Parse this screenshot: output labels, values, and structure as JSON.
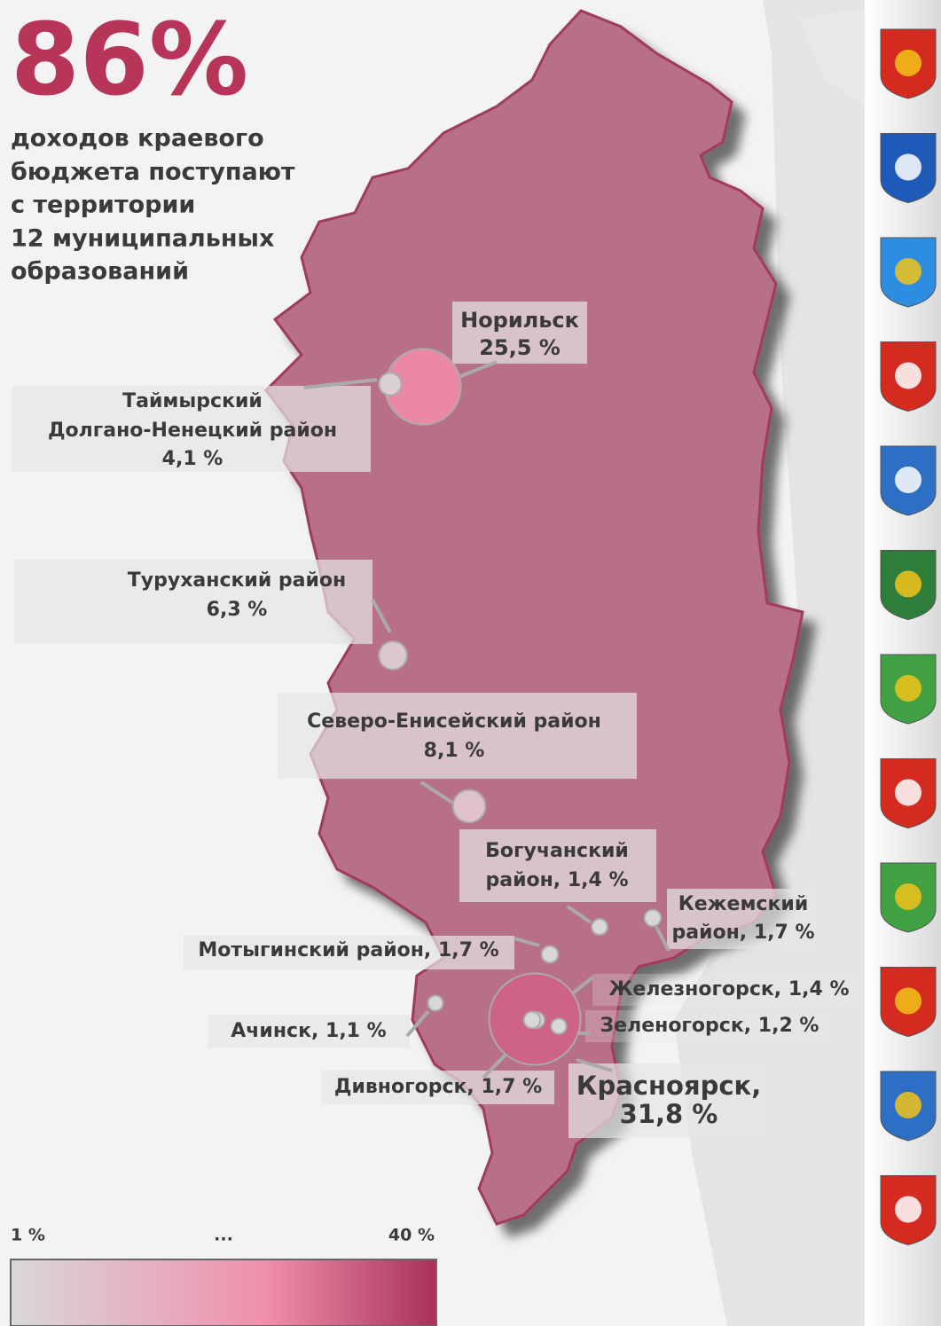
{
  "headline": "86%",
  "description": [
    "доходов краевого",
    "бюджета поступают",
    "с территории",
    "12 муниципальных",
    "образований"
  ],
  "regions": [
    {
      "label_lines": [
        "Норильск",
        "25,5 %"
      ],
      "value": 25.5
    },
    {
      "label_lines": [
        "Таймырский",
        "Долгано-Ненецкий район",
        "4,1 %"
      ],
      "value": 4.1
    },
    {
      "label_lines": [
        "Туруханский район",
        "6,3 %"
      ],
      "value": 6.3
    },
    {
      "label_lines": [
        "Северо-Енисейский район",
        "8,1 %"
      ],
      "value": 8.1
    },
    {
      "label_lines": [
        "Богучанский",
        "район, 1,4 %"
      ],
      "value": 1.4
    },
    {
      "label_lines": [
        "Кежемский",
        "район, 1,7 %"
      ],
      "value": 1.7
    },
    {
      "label_lines": [
        "Мотыгинский район, 1,7 %"
      ],
      "value": 1.7
    },
    {
      "label_lines": [
        "Красноярск,",
        "31,8 %"
      ],
      "value": 31.8
    },
    {
      "label_lines": [
        "Железногорск, 1,4 %"
      ],
      "value": 1.4
    },
    {
      "label_lines": [
        "Зеленогорск, 1,2 %"
      ],
      "value": 1.2
    },
    {
      "label_lines": [
        "Ачинск, 1,1 %"
      ],
      "value": 1.1
    },
    {
      "label_lines": [
        "Дивногорск, 1,7 %"
      ],
      "value": 1.7
    }
  ],
  "legend": {
    "min": 1,
    "max": 40,
    "min_label": "1 %",
    "mid_label": "...",
    "max_label": "40 %"
  }
}
